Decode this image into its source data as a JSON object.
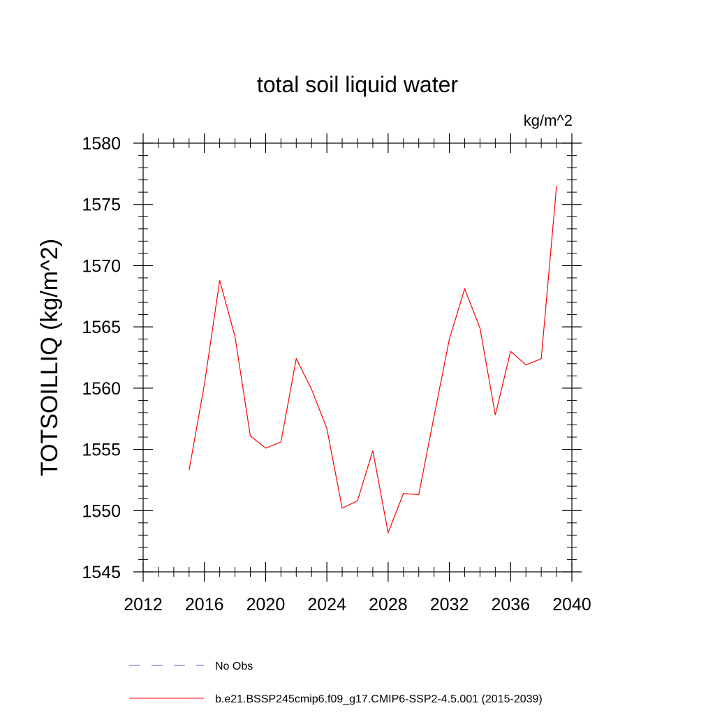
{
  "chart_data": {
    "type": "line",
    "title": "total soil liquid water",
    "units_label": "kg/m^2",
    "xlabel": "",
    "ylabel": "TOTSOILLIQ  (kg/m^2)",
    "xlim": [
      2012,
      2040
    ],
    "ylim": [
      1545,
      1580
    ],
    "x_ticks": [
      2012,
      2016,
      2020,
      2024,
      2028,
      2032,
      2036,
      2040
    ],
    "y_ticks": [
      1545,
      1550,
      1555,
      1560,
      1565,
      1570,
      1575,
      1580
    ],
    "x_minor_step": 1,
    "y_minor_step": 1,
    "series": [
      {
        "name": "b.e21.BSSP245cmip6.f09_g17.CMIP6-SSP2-4.5.001 (2015-2039)",
        "color": "#ff0000",
        "style": "solid",
        "x": [
          2015,
          2016,
          2017,
          2018,
          2019,
          2020,
          2021,
          2022,
          2023,
          2024,
          2025,
          2026,
          2027,
          2028,
          2029,
          2030,
          2031,
          2032,
          2033,
          2034,
          2035,
          2036,
          2037,
          2038,
          2039
        ],
        "y": [
          1553.3,
          1560.3,
          1568.8,
          1564.2,
          1556.1,
          1555.1,
          1555.6,
          1562.4,
          1559.9,
          1556.7,
          1550.2,
          1550.8,
          1554.9,
          1548.2,
          1551.4,
          1551.3,
          1557.7,
          1564.0,
          1568.1,
          1564.9,
          1557.8,
          1563.0,
          1561.9,
          1562.4,
          1576.5
        ]
      }
    ],
    "legend": [
      {
        "label": "No Obs",
        "color": "#5c5cc8",
        "style": "dashed"
      },
      {
        "label": "b.e21.BSSP245cmip6.f09_g17.CMIP6-SSP2-4.5.001 (2015-2039)",
        "color": "#ff0000",
        "style": "solid"
      }
    ]
  }
}
